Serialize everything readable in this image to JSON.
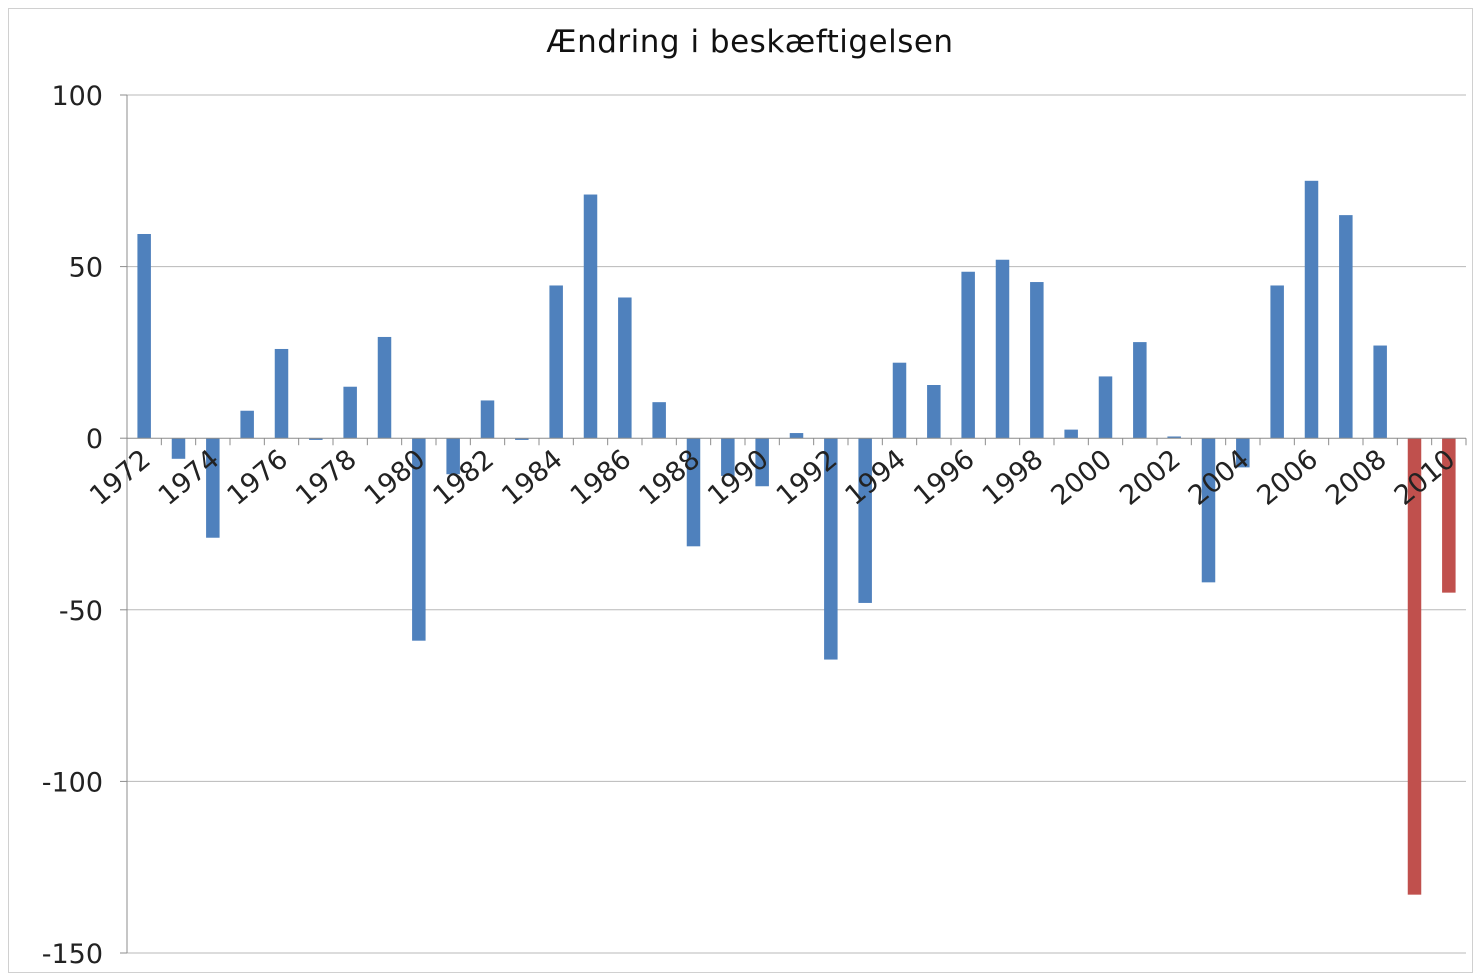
{
  "chart_data": {
    "type": "bar",
    "title": "Ændring i beskæftigelsen",
    "xlabel": "",
    "ylabel": "",
    "ylim": [
      -150,
      100
    ],
    "yticks": [
      100,
      50,
      0,
      -50,
      -100,
      -150
    ],
    "grid": true,
    "legend": "none",
    "categories": [
      "1972",
      "1973",
      "1974",
      "1975",
      "1976",
      "1977",
      "1978",
      "1979",
      "1980",
      "1981",
      "1982",
      "1983",
      "1984",
      "1985",
      "1986",
      "1987",
      "1988",
      "1989",
      "1990",
      "1991",
      "1992",
      "1993",
      "1994",
      "1995",
      "1996",
      "1997",
      "1998",
      "1999",
      "2000",
      "2001",
      "2002",
      "2003",
      "2004",
      "2005",
      "2006",
      "2007",
      "2008",
      "2009",
      "2010"
    ],
    "tick_labels": [
      "1972",
      "",
      "1974",
      "",
      "1976",
      "",
      "1978",
      "",
      "1980",
      "",
      "1982",
      "",
      "1984",
      "",
      "1986",
      "",
      "1988",
      "",
      "1990",
      "",
      "1992",
      "",
      "1994",
      "",
      "1996",
      "",
      "1998",
      "",
      "2000",
      "",
      "2002",
      "",
      "2004",
      "",
      "2006",
      "",
      "2008",
      "",
      "2010"
    ],
    "values": [
      59.5,
      -6,
      -29,
      8,
      26,
      -0.5,
      15,
      29.5,
      -59,
      -10.5,
      11,
      -0.5,
      44.5,
      71,
      41,
      10.5,
      -31.5,
      -11,
      -14,
      1.5,
      -64.5,
      -48,
      22,
      15.5,
      48.5,
      52,
      45.5,
      2.5,
      18,
      28,
      0.5,
      -42,
      -8.5,
      44.5,
      75,
      65,
      27,
      -133,
      -45
    ],
    "colors": {
      "default": "#4f81bd",
      "highlight": "#c0504d",
      "gridline": "#b8b8b8",
      "axis": "#8c8c8c"
    },
    "highlight_categories": [
      "2009",
      "2010"
    ]
  }
}
